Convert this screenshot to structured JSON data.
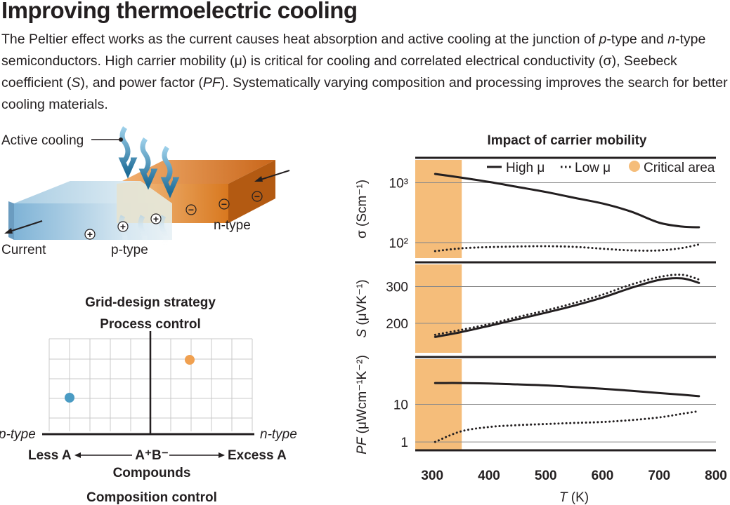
{
  "header": {
    "title": "Improving thermoelectric cooling",
    "caption": [
      {
        "t": "The Peltier effect works as the current causes heat absorption and active cooling at the junction of "
      },
      {
        "t": "p",
        "i": true
      },
      {
        "t": "-type and "
      },
      {
        "t": "n",
        "i": true
      },
      {
        "t": "-type semiconductors. High carrier mobility (μ) is critical for cooling and correlated electrical conductivity (σ), Seebeck coefficient ("
      },
      {
        "t": "S",
        "i": true
      },
      {
        "t": "), and power factor ("
      },
      {
        "t": "PF",
        "i": true
      },
      {
        "t": "). Systematically varying composition and processing improves the search for better cooling materials."
      }
    ]
  },
  "device": {
    "active_cooling": "Active cooling",
    "current": "Current",
    "p_type": "p-type",
    "n_type": "n-type",
    "plus": "+",
    "minus": "−"
  },
  "grid": {
    "title": "Grid-design strategy",
    "process_control": "Process control",
    "p_type": "p-type",
    "n_type": "n-type",
    "less_a": "Less A",
    "center": "A⁺B⁻",
    "excess_a": "Excess A",
    "compounds": "Compounds",
    "composition_control": "Composition control",
    "colors": {
      "blue_point": "#4a9bc3",
      "orange_point": "#f0a050"
    }
  },
  "chart_data": {
    "type": "line",
    "title": "Impact of carrier mobility",
    "xlabel": "T (K)",
    "xlim": [
      270,
      800
    ],
    "x_ticks": [
      "300",
      "400",
      "500",
      "600",
      "700",
      "800"
    ],
    "shaded_region": {
      "x": [
        270,
        352
      ],
      "label": "Critical area",
      "color": "#f5bd7a"
    },
    "legend": [
      "High μ",
      "Low μ",
      "Critical area"
    ],
    "legend_position": "top-right",
    "panels": [
      {
        "ylabel": "σ (Scm⁻¹)",
        "yscale": "log",
        "ylim": [
          55,
          2400
        ],
        "y_ticks": [
          {
            "v": 1000,
            "label": "10³"
          },
          {
            "v": 100,
            "label": "10²"
          }
        ],
        "series": [
          {
            "name": "High μ",
            "style": "solid",
            "points": [
              [
                305,
                1400
              ],
              [
                350,
                1220
              ],
              [
                400,
                1030
              ],
              [
                450,
                850
              ],
              [
                500,
                700
              ],
              [
                550,
                560
              ],
              [
                600,
                450
              ],
              [
                650,
                330
              ],
              [
                700,
                215
              ],
              [
                740,
                185
              ],
              [
                770,
                180
              ]
            ]
          },
          {
            "name": "Low μ",
            "style": "dotted",
            "points": [
              [
                305,
                72
              ],
              [
                350,
                80
              ],
              [
                400,
                84
              ],
              [
                450,
                86
              ],
              [
                500,
                87
              ],
              [
                550,
                85
              ],
              [
                600,
                79
              ],
              [
                650,
                74
              ],
              [
                700,
                74
              ],
              [
                740,
                81
              ],
              [
                770,
                93
              ]
            ]
          }
        ]
      },
      {
        "ylabel": "S (μVK⁻¹)",
        "yscale": "linear",
        "ylim": [
          120,
          360
        ],
        "y_ticks": [
          {
            "v": 300,
            "label": "300"
          },
          {
            "v": 200,
            "label": "200"
          }
        ],
        "series": [
          {
            "name": "High μ",
            "style": "solid",
            "points": [
              [
                305,
                163
              ],
              [
                350,
                176
              ],
              [
                400,
                193
              ],
              [
                450,
                211
              ],
              [
                500,
                229
              ],
              [
                550,
                248
              ],
              [
                600,
                270
              ],
              [
                650,
                296
              ],
              [
                700,
                318
              ],
              [
                740,
                322
              ],
              [
                770,
                310
              ]
            ]
          },
          {
            "name": "Low μ",
            "style": "dotted",
            "points": [
              [
                305,
                169
              ],
              [
                350,
                182
              ],
              [
                400,
                198
              ],
              [
                450,
                217
              ],
              [
                500,
                235
              ],
              [
                550,
                255
              ],
              [
                600,
                278
              ],
              [
                650,
                305
              ],
              [
                700,
                326
              ],
              [
                740,
                332
              ],
              [
                770,
                319
              ]
            ]
          }
        ]
      },
      {
        "ylabel": "PF (μWcm⁻¹K⁻²)",
        "yscale": "log",
        "ylim": [
          0.6,
          160
        ],
        "y_ticks": [
          {
            "v": 10,
            "label": "10"
          },
          {
            "v": 1,
            "label": "1"
          }
        ],
        "series": [
          {
            "name": "High μ",
            "style": "solid",
            "points": [
              [
                305,
                37
              ],
              [
                350,
                37
              ],
              [
                400,
                36
              ],
              [
                450,
                34
              ],
              [
                500,
                32
              ],
              [
                550,
                29
              ],
              [
                600,
                26
              ],
              [
                650,
                23
              ],
              [
                700,
                20
              ],
              [
                740,
                18
              ],
              [
                770,
                16.5
              ]
            ]
          },
          {
            "name": "Low μ",
            "style": "dotted",
            "points": [
              [
                305,
                1.0
              ],
              [
                350,
                1.9
              ],
              [
                400,
                2.5
              ],
              [
                450,
                2.8
              ],
              [
                500,
                3.0
              ],
              [
                550,
                3.2
              ],
              [
                600,
                3.4
              ],
              [
                650,
                3.8
              ],
              [
                700,
                4.5
              ],
              [
                740,
                5.6
              ],
              [
                770,
                6.6
              ]
            ]
          }
        ]
      }
    ],
    "colors": {
      "line": "#231f20",
      "grid": "#8a8a8a"
    }
  }
}
